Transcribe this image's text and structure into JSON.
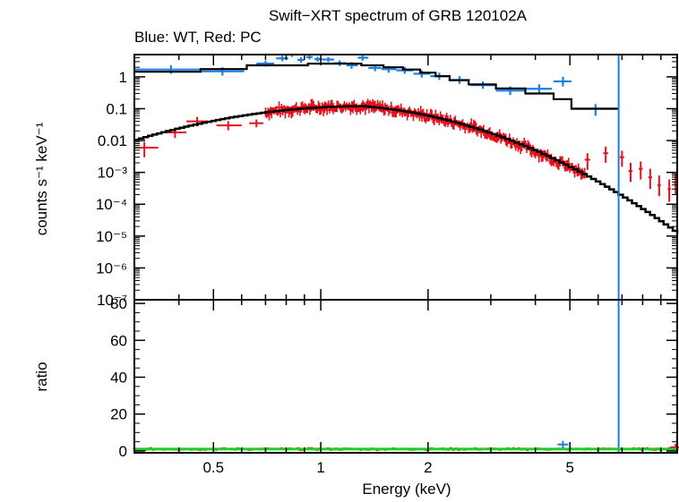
{
  "chart_data": {
    "type": "scatter",
    "title": "Swift−XRT spectrum of GRB 120102A",
    "subtitle": "Blue: WT, Red: PC",
    "xlabel": "Energy (keV)",
    "xscale": "log",
    "xlim": [
      0.3,
      10
    ],
    "xticks": [
      0.5,
      1,
      2,
      5
    ],
    "xtick_labels": [
      "0.5",
      "1",
      "2",
      "5"
    ],
    "panels": [
      {
        "name": "spectrum",
        "ylabel": "counts s⁻¹ keV⁻¹",
        "yscale": "log",
        "ylim": [
          1e-07,
          5
        ],
        "yticks": [
          1,
          0.1,
          0.01,
          0.001,
          0.0001,
          1e-05,
          1e-06,
          1e-07
        ],
        "ytick_labels": [
          "1",
          "0.1",
          "0.01",
          "10⁻³",
          "10⁻⁴",
          "10⁻⁵",
          "10⁻⁶",
          "10⁻⁷"
        ]
      },
      {
        "name": "ratio",
        "ylabel": "ratio",
        "yscale": "linear",
        "ylim": [
          -1,
          82
        ],
        "yticks": [
          0,
          20,
          40,
          60,
          80
        ],
        "ytick_labels": [
          "0",
          "20",
          "40",
          "60",
          "80"
        ]
      }
    ],
    "colors": {
      "wt": "#1a7fe0",
      "pc": "#e8101a",
      "model": "#000000",
      "ratio_line": "#22cc22"
    },
    "series": [
      {
        "name": "WT",
        "color": "#1a7fe0",
        "points": [
          {
            "x": 0.38,
            "dx": [
              0.3,
              0.46
            ],
            "y": 1.7,
            "dy": [
              1.25,
              2.3
            ]
          },
          {
            "x": 0.53,
            "dx": [
              0.46,
              0.61
            ],
            "y": 1.5,
            "dy": [
              1.1,
              2.0
            ]
          },
          {
            "x": 0.7,
            "dx": [
              0.66,
              0.74
            ],
            "y": 2.6,
            "dy": [
              2.1,
              3.2
            ]
          },
          {
            "x": 0.78,
            "dx": [
              0.75,
              0.81
            ],
            "y": 3.8,
            "dy": [
              3.1,
              4.6
            ]
          },
          {
            "x": 0.83,
            "dx": [
              0.81,
              0.85
            ],
            "y": 5.0,
            "dy": [
              4.2,
              5.9
            ]
          },
          {
            "x": 0.88,
            "dx": [
              0.86,
              0.9
            ],
            "y": 3.4,
            "dy": [
              2.8,
              4.1
            ]
          },
          {
            "x": 0.93,
            "dx": [
              0.91,
              0.95
            ],
            "y": 4.2,
            "dy": [
              3.5,
              5.0
            ]
          },
          {
            "x": 0.98,
            "dx": [
              0.96,
              1.01
            ],
            "y": 3.6,
            "dy": [
              3.0,
              4.3
            ]
          },
          {
            "x": 1.05,
            "dx": [
              1.01,
              1.09
            ],
            "y": 3.5,
            "dy": [
              2.9,
              4.2
            ]
          },
          {
            "x": 1.13,
            "dx": [
              1.09,
              1.18
            ],
            "y": 2.7,
            "dy": [
              2.2,
              3.3
            ]
          },
          {
            "x": 1.22,
            "dx": [
              1.18,
              1.27
            ],
            "y": 2.3,
            "dy": [
              1.8,
              2.9
            ]
          },
          {
            "x": 1.31,
            "dx": [
              1.27,
              1.36
            ],
            "y": 4.0,
            "dy": [
              3.2,
              4.9
            ]
          },
          {
            "x": 1.42,
            "dx": [
              1.36,
              1.48
            ],
            "y": 1.9,
            "dy": [
              1.5,
              2.4
            ]
          },
          {
            "x": 1.55,
            "dx": [
              1.48,
              1.63
            ],
            "y": 1.75,
            "dy": [
              1.35,
              2.2
            ]
          },
          {
            "x": 1.72,
            "dx": [
              1.63,
              1.82
            ],
            "y": 1.6,
            "dy": [
              1.25,
              2.05
            ]
          },
          {
            "x": 1.92,
            "dx": [
              1.82,
              2.03
            ],
            "y": 1.25,
            "dy": [
              0.95,
              1.6
            ]
          },
          {
            "x": 2.15,
            "dx": [
              2.03,
              2.28
            ],
            "y": 1.05,
            "dy": [
              0.8,
              1.35
            ]
          },
          {
            "x": 2.45,
            "dx": [
              2.28,
              2.62
            ],
            "y": 0.8,
            "dy": [
              0.6,
              1.05
            ]
          },
          {
            "x": 2.85,
            "dx": [
              2.62,
              3.1
            ],
            "y": 0.55,
            "dy": [
              0.42,
              0.72
            ]
          },
          {
            "x": 3.4,
            "dx": [
              3.1,
              3.75
            ],
            "y": 0.37,
            "dy": [
              0.27,
              0.5
            ]
          },
          {
            "x": 4.1,
            "dx": [
              3.75,
              4.45
            ],
            "y": 0.42,
            "dy": [
              0.3,
              0.58
            ]
          },
          {
            "x": 4.78,
            "dx": [
              4.5,
              5.05
            ],
            "y": 0.72,
            "dy": [
              0.5,
              1.0
            ]
          },
          {
            "x": 5.9,
            "dx": [
              5.05,
              6.85
            ],
            "y": 0.1,
            "dy": [
              0.06,
              0.14
            ]
          }
        ]
      },
      {
        "name": "PC",
        "color": "#e8101a",
        "points": [
          {
            "x": 0.32,
            "dx": [
              0.3,
              0.35
            ],
            "y": 0.006,
            "dy": [
              0.003,
              0.009
            ]
          },
          {
            "x": 0.39,
            "dx": [
              0.36,
              0.42
            ],
            "y": 0.018,
            "dy": [
              0.012,
              0.025
            ]
          },
          {
            "x": 0.45,
            "dx": [
              0.42,
              0.48
            ],
            "y": 0.04,
            "dy": [
              0.028,
              0.055
            ]
          },
          {
            "x": 0.55,
            "dx": [
              0.51,
              0.6
            ],
            "y": 0.03,
            "dy": [
              0.021,
              0.041
            ]
          },
          {
            "x": 0.66,
            "dx": [
              0.63,
              0.69
            ],
            "y": 0.035,
            "dy": [
              0.026,
              0.046
            ]
          },
          {
            "x": 5.6,
            "dx": [
              5.5,
              5.7
            ],
            "y": 0.0025,
            "dy": [
              0.0012,
              0.004
            ]
          },
          {
            "x": 6.3,
            "dx": [
              6.2,
              6.4
            ],
            "y": 0.004,
            "dy": [
              0.002,
              0.0065
            ]
          },
          {
            "x": 7.0,
            "dx": [
              6.9,
              7.1
            ],
            "y": 0.003,
            "dy": [
              0.0015,
              0.0048
            ]
          },
          {
            "x": 7.4,
            "dx": [
              7.3,
              7.5
            ],
            "y": 0.0011,
            "dy": [
              0.0005,
              0.002
            ]
          },
          {
            "x": 7.9,
            "dx": [
              7.8,
              8.0
            ],
            "y": 0.0013,
            "dy": [
              0.0006,
              0.0022
            ]
          },
          {
            "x": 8.4,
            "dx": [
              8.3,
              8.5
            ],
            "y": 0.0007,
            "dy": [
              0.0003,
              0.0013
            ]
          },
          {
            "x": 8.9,
            "dx": [
              8.8,
              9.0
            ],
            "y": 0.0004,
            "dy": [
              0.00018,
              0.0008
            ]
          },
          {
            "x": 9.5,
            "dx": [
              9.4,
              9.6
            ],
            "y": 0.0003,
            "dy": [
              0.00012,
              0.0006
            ]
          },
          {
            "x": 9.9,
            "dx": [
              9.8,
              10.0
            ],
            "y": 0.00045,
            "dy": [
              0.0002,
              0.0009
            ]
          }
        ]
      }
    ],
    "models": [
      {
        "name": "WT",
        "steps": [
          {
            "x0": 0.3,
            "x1": 0.46,
            "y": 1.45
          },
          {
            "x0": 0.46,
            "x1": 0.62,
            "y": 1.75
          },
          {
            "x0": 0.62,
            "x1": 0.92,
            "y": 2.3
          },
          {
            "x0": 0.92,
            "x1": 1.3,
            "y": 2.6
          },
          {
            "x0": 1.3,
            "x1": 1.5,
            "y": 2.3
          },
          {
            "x0": 1.5,
            "x1": 1.7,
            "y": 2.0
          },
          {
            "x0": 1.7,
            "x1": 1.9,
            "y": 1.7
          },
          {
            "x0": 1.9,
            "x1": 2.1,
            "y": 1.35
          },
          {
            "x0": 2.1,
            "x1": 2.3,
            "y": 1.05
          },
          {
            "x0": 2.3,
            "x1": 2.6,
            "y": 0.78
          },
          {
            "x0": 2.6,
            "x1": 3.1,
            "y": 0.58
          },
          {
            "x0": 3.1,
            "x1": 3.75,
            "y": 0.43
          },
          {
            "x0": 3.75,
            "x1": 4.5,
            "y": 0.3
          },
          {
            "x0": 4.5,
            "x1": 5.05,
            "y": 0.2
          },
          {
            "x0": 5.05,
            "x1": 6.85,
            "y": 0.1
          }
        ]
      },
      {
        "name": "PC",
        "peak_energy": 1.3,
        "peak_value": 0.12
      }
    ],
    "vertical_line": {
      "x": 6.85,
      "color": "#1a7fe0"
    },
    "ratio_points": [
      {
        "x": 4.78,
        "y": 3.5,
        "series": "WT"
      },
      {
        "x": 9.9,
        "y": 2.0,
        "series": "PC"
      }
    ]
  }
}
